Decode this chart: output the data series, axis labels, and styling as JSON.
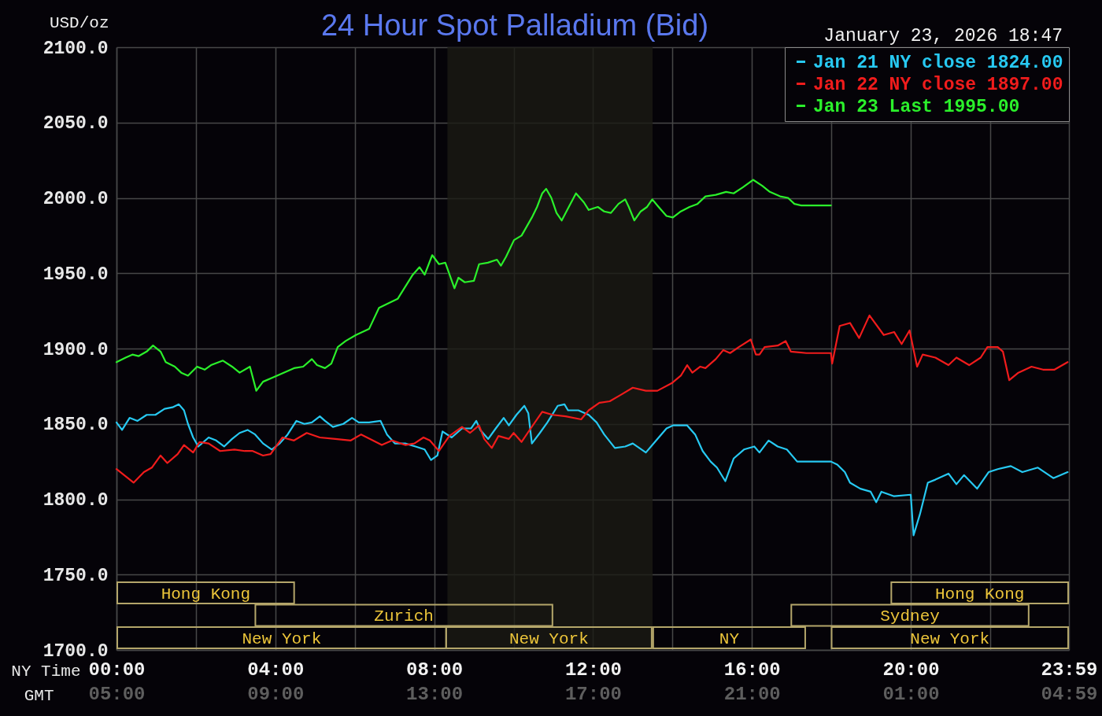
{
  "chart_data": {
    "type": "line",
    "title": "24 Hour Spot Palladium (Bid)",
    "subtitle": "January 23, 2026 18:47",
    "xlabel": "NY Time",
    "x2label": "GMT",
    "ylabel": "USD/oz",
    "xlim": [
      0,
      23.983
    ],
    "xticks": [
      {
        "value": 0,
        "label": "00:00"
      },
      {
        "value": 2,
        "label": null
      },
      {
        "value": 4,
        "label": "04:00"
      },
      {
        "value": 6,
        "label": null
      },
      {
        "value": 8,
        "label": "08:00"
      },
      {
        "value": 10,
        "label": null
      },
      {
        "value": 12,
        "label": "12:00"
      },
      {
        "value": 14,
        "label": null
      },
      {
        "value": 16,
        "label": "16:00"
      },
      {
        "value": 18,
        "label": null
      },
      {
        "value": 20,
        "label": "20:00"
      },
      {
        "value": 22,
        "label": null
      },
      {
        "value": 23.983,
        "label": "23:59"
      }
    ],
    "x2lim": [
      "2026-01-23T05:00",
      "2026-01-24T04:59"
    ],
    "x2ticks": [
      {
        "value": "2026-01-23T05:00",
        "label": "05:00"
      },
      {
        "value": "2026-01-23T09:00",
        "label": "09:00"
      },
      {
        "value": "2026-01-23T13:00",
        "label": "13:00"
      },
      {
        "value": "2026-01-23T17:00",
        "label": "17:00"
      },
      {
        "value": "2026-01-23T21:00",
        "label": "21:00"
      },
      {
        "value": "2026-01-24T01:00",
        "label": "01:00"
      },
      {
        "value": "2026-01-24T04:59",
        "label": "04:59"
      }
    ],
    "ylim": [
      1700,
      2100
    ],
    "yticks": [
      {
        "value": 1700,
        "label": "1700.0"
      },
      {
        "value": 1750,
        "label": "1750.0"
      },
      {
        "value": 1800,
        "label": "1800.0"
      },
      {
        "value": 1850,
        "label": "1850.0"
      },
      {
        "value": 1900,
        "label": "1900.0"
      },
      {
        "value": 1950,
        "label": "1950.0"
      },
      {
        "value": 2000,
        "label": "2000.0"
      },
      {
        "value": 2050,
        "label": "2050.0"
      },
      {
        "value": 2100,
        "label": "2100.0"
      }
    ],
    "grid": true,
    "legend": "top right",
    "bands": [
      {
        "axis": "x",
        "from": 8.333,
        "to": 13.5,
        "color": "#1a1a14"
      }
    ],
    "annotations": [
      "Hong Kong",
      "Hong Kong",
      "Zurich",
      "Sydney",
      "New York",
      "New York",
      "NY",
      "New York"
    ],
    "series": [
      {
        "name": "Jan 21 NY close 1824.00",
        "color": "#27c9f2",
        "x": [
          0,
          0.14,
          0.33,
          0.53,
          0.76,
          0.98,
          1.21,
          1.41,
          1.57,
          1.7,
          1.8,
          1.93,
          2.06,
          2.32,
          2.51,
          2.71,
          2.91,
          3.1,
          3.3,
          3.49,
          3.69,
          3.91,
          4.11,
          4.31,
          4.53,
          4.73,
          4.92,
          5.12,
          5.25,
          5.45,
          5.71,
          5.93,
          6.1,
          6.36,
          6.65,
          6.81,
          7.01,
          7.27,
          7.53,
          7.76,
          7.92,
          8.08,
          8.21,
          8.44,
          8.7,
          8.93,
          9.06,
          9.16,
          9.36,
          9.55,
          9.75,
          9.88,
          10.07,
          10.27,
          10.37,
          10.46,
          10.66,
          10.85,
          11.11,
          11.28,
          11.37,
          11.63,
          11.89,
          12.09,
          12.28,
          12.55,
          12.81,
          13,
          13.33,
          13.59,
          13.85,
          14.01,
          14.37,
          14.57,
          14.76,
          14.96,
          15.12,
          15.33,
          15.54,
          15.8,
          16.06,
          16.19,
          16.42,
          16.65,
          16.88,
          17.14,
          17.43,
          17.99,
          18.15,
          18.34,
          18.47,
          18.73,
          18.99,
          19.13,
          19.26,
          19.58,
          20,
          20.07,
          20.23,
          20.43,
          20.62,
          20.95,
          21.15,
          21.34,
          21.67,
          21.96,
          22.19,
          22.52,
          22.81,
          23.2,
          23.59,
          23.95
        ],
        "values": [
          1851,
          1846,
          1854,
          1852,
          1856,
          1856,
          1860,
          1861,
          1863,
          1859,
          1850,
          1841,
          1835,
          1841,
          1839,
          1835,
          1840,
          1844,
          1846,
          1843,
          1837,
          1833,
          1837,
          1843,
          1852,
          1850,
          1851,
          1855,
          1852,
          1848,
          1850,
          1854,
          1851,
          1851,
          1852,
          1843,
          1837,
          1837,
          1835,
          1833,
          1826,
          1829,
          1845,
          1841,
          1847,
          1847,
          1852,
          1846,
          1840,
          1847,
          1854,
          1849,
          1856,
          1862,
          1857,
          1837,
          1844,
          1851,
          1862,
          1863,
          1859,
          1859,
          1856,
          1851,
          1843,
          1834,
          1835,
          1837,
          1831,
          1839,
          1847,
          1849,
          1849,
          1843,
          1832,
          1825,
          1821,
          1812,
          1827,
          1833,
          1835,
          1831,
          1839,
          1835,
          1833,
          1825,
          1825,
          1825,
          1823,
          1818,
          1811,
          1807,
          1805,
          1798,
          1805,
          1802,
          1803,
          1776,
          1790,
          1811,
          1813,
          1817,
          1810,
          1816,
          1807,
          1818,
          1820,
          1822,
          1818,
          1821,
          1814,
          1818
        ]
      },
      {
        "name": "Jan 22 NY close 1897.00",
        "color": "#f01c1c",
        "x": [
          0,
          0.43,
          0.69,
          0.89,
          1.11,
          1.28,
          1.54,
          1.7,
          1.93,
          2.09,
          2.32,
          2.61,
          2.97,
          3.23,
          3.43,
          3.69,
          3.88,
          4.18,
          4.47,
          4.79,
          5.12,
          5.51,
          5.9,
          6.16,
          6.68,
          6.94,
          7.27,
          7.5,
          7.73,
          7.89,
          8.12,
          8.38,
          8.7,
          8.9,
          9.13,
          9.26,
          9.45,
          9.62,
          9.88,
          10,
          10.2,
          10.43,
          10.72,
          10.98,
          11.31,
          11.7,
          11.89,
          12.16,
          12.42,
          12.68,
          13,
          13.33,
          13.62,
          13.98,
          14.21,
          14.37,
          14.5,
          14.7,
          14.83,
          15.09,
          15.28,
          15.45,
          15.67,
          15.97,
          16.1,
          16.19,
          16.32,
          16.65,
          16.85,
          16.98,
          17.37,
          17.99,
          18.02,
          18.21,
          18.47,
          18.7,
          18.96,
          19.32,
          19.58,
          19.77,
          19.97,
          20.16,
          20.3,
          20.62,
          20.95,
          21.15,
          21.47,
          21.76,
          21.93,
          22.19,
          22.32,
          22.48,
          22.71,
          23.04,
          23.33,
          23.62,
          23.95
        ],
        "values": [
          1820,
          1811,
          1818,
          1821,
          1829,
          1824,
          1830,
          1836,
          1831,
          1838,
          1837,
          1832,
          1833,
          1832,
          1832,
          1829,
          1830,
          1841,
          1839,
          1844,
          1841,
          1840,
          1839,
          1843,
          1836,
          1839,
          1836,
          1837,
          1841,
          1839,
          1832,
          1842,
          1848,
          1844,
          1849,
          1840,
          1834,
          1842,
          1840,
          1844,
          1838,
          1847,
          1858,
          1856,
          1855,
          1853,
          1859,
          1864,
          1865,
          1869,
          1874,
          1872,
          1872,
          1877,
          1882,
          1889,
          1884,
          1888,
          1887,
          1893,
          1899,
          1897,
          1901,
          1906,
          1896,
          1896,
          1901,
          1902,
          1905,
          1898,
          1897,
          1897,
          1890,
          1915,
          1917,
          1907,
          1922,
          1909,
          1911,
          1903,
          1912,
          1888,
          1896,
          1894,
          1889,
          1894,
          1889,
          1894,
          1901,
          1901,
          1898,
          1879,
          1884,
          1888,
          1886,
          1886,
          1891
        ]
      },
      {
        "name": "Jan 23 Last 1995.00",
        "color": "#2bf02b",
        "x": [
          0,
          0.23,
          0.4,
          0.56,
          0.76,
          0.92,
          1.11,
          1.24,
          1.47,
          1.63,
          1.8,
          2.03,
          2.22,
          2.38,
          2.68,
          2.91,
          3.1,
          3.36,
          3.52,
          3.69,
          3.95,
          4.21,
          4.47,
          4.7,
          4.92,
          5.05,
          5.25,
          5.41,
          5.57,
          5.77,
          6.03,
          6.36,
          6.61,
          7.08,
          7.46,
          7.63,
          7.76,
          7.95,
          8.12,
          8.28,
          8.51,
          8.61,
          8.77,
          9,
          9.13,
          9.35,
          9.58,
          9.68,
          9.81,
          10.01,
          10.2,
          10.33,
          10.46,
          10.59,
          10.72,
          10.82,
          10.95,
          11.08,
          11.21,
          11.41,
          11.57,
          11.77,
          11.89,
          12.12,
          12.28,
          12.45,
          12.64,
          12.81,
          12.9,
          13.04,
          13.2,
          13.36,
          13.49,
          13.65,
          13.85,
          14.01,
          14.21,
          14.43,
          14.63,
          14.83,
          15.09,
          15.35,
          15.54,
          15.77,
          16.03,
          16.26,
          16.45,
          16.71,
          16.91,
          17.07,
          17.24,
          17.99
        ],
        "values": [
          1891,
          1894,
          1896,
          1895,
          1898,
          1902,
          1898,
          1891,
          1888,
          1884,
          1882,
          1888,
          1886,
          1889,
          1892,
          1888,
          1884,
          1888,
          1872,
          1878,
          1881,
          1884,
          1887,
          1888,
          1893,
          1889,
          1887,
          1890,
          1901,
          1905,
          1909,
          1913,
          1927,
          1933,
          1949,
          1954,
          1949,
          1962,
          1956,
          1957,
          1940,
          1947,
          1944,
          1945,
          1956,
          1957,
          1959,
          1955,
          1961,
          1972,
          1975,
          1981,
          1987,
          1994,
          2003,
          2006,
          2000,
          1990,
          1985,
          1995,
          2003,
          1997,
          1992,
          1994,
          1991,
          1990,
          1996,
          1999,
          1994,
          1985,
          1991,
          1994,
          1999,
          1994,
          1988,
          1987,
          1991,
          1994,
          1996,
          2001,
          2002,
          2004,
          2003,
          2007,
          2012,
          2008,
          2004,
          2001,
          2000,
          1996,
          1995,
          1995
        ]
      }
    ]
  }
}
